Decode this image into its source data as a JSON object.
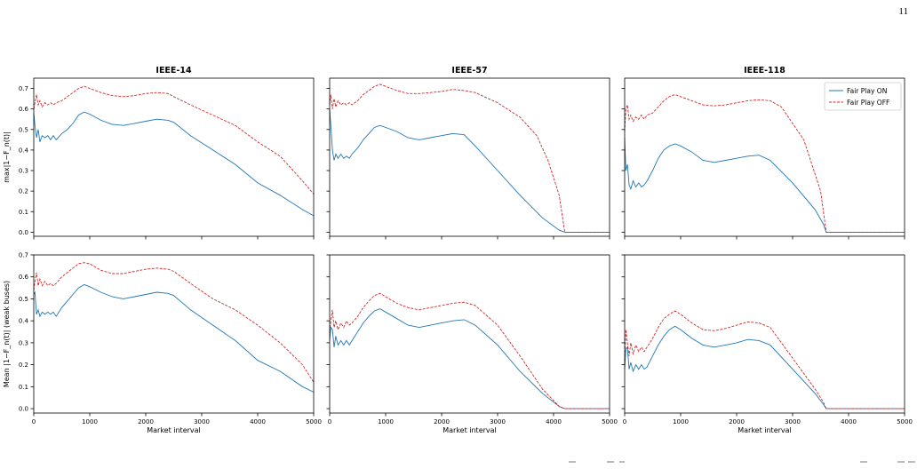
{
  "page_number": "11",
  "legend": {
    "on_label": "Fair Play ON",
    "off_label": "Fair Play OFF",
    "placement": "upper-right of IEEE-118 top panel"
  },
  "colors": {
    "on": "#1f77b4",
    "off": "#d62728"
  },
  "row_ylabels": [
    "max|1−F_n(t)|",
    "Mean |1−F_n(t)| (weak buses)"
  ],
  "chart_data": [
    {
      "type": "line",
      "title": "IEEE-14",
      "xlabel": "",
      "ylabel": "max|1−F_n(t)|",
      "xlim": [
        0,
        5000
      ],
      "ylim": [
        -0.02,
        0.75
      ],
      "xticks": [
        0,
        1000,
        2000,
        3000,
        4000,
        5000
      ],
      "yticks": [
        "0.0",
        "0.1",
        "0.2",
        "0.3",
        "0.4",
        "0.5",
        "0.6",
        "0.7"
      ],
      "show_xticklabels": false,
      "show_yticklabels": true,
      "series": [
        {
          "name": "Fair Play ON",
          "style": "solid",
          "x": [
            0,
            20,
            50,
            80,
            110,
            150,
            200,
            250,
            300,
            350,
            400,
            500,
            600,
            700,
            800,
            900,
            1000,
            1200,
            1400,
            1600,
            1800,
            2000,
            2200,
            2400,
            2500,
            2800,
            3200,
            3600,
            4000,
            4400,
            4800,
            5000
          ],
          "y": [
            0.58,
            0.52,
            0.46,
            0.5,
            0.44,
            0.47,
            0.46,
            0.47,
            0.45,
            0.47,
            0.45,
            0.48,
            0.5,
            0.53,
            0.57,
            0.585,
            0.575,
            0.545,
            0.525,
            0.52,
            0.53,
            0.54,
            0.55,
            0.545,
            0.535,
            0.47,
            0.4,
            0.33,
            0.24,
            0.18,
            0.11,
            0.08
          ]
        },
        {
          "name": "Fair Play OFF",
          "style": "dashed",
          "x": [
            0,
            20,
            50,
            80,
            110,
            150,
            200,
            250,
            300,
            350,
            400,
            500,
            600,
            700,
            800,
            900,
            1000,
            1200,
            1400,
            1600,
            1800,
            2000,
            2200,
            2400,
            2500,
            2800,
            3200,
            3600,
            4000,
            4400,
            4800,
            5000
          ],
          "y": [
            0.6,
            0.63,
            0.67,
            0.62,
            0.64,
            0.61,
            0.63,
            0.62,
            0.63,
            0.62,
            0.63,
            0.64,
            0.66,
            0.68,
            0.7,
            0.71,
            0.7,
            0.68,
            0.665,
            0.66,
            0.665,
            0.675,
            0.68,
            0.675,
            0.66,
            0.62,
            0.57,
            0.52,
            0.44,
            0.37,
            0.25,
            0.185
          ]
        }
      ]
    },
    {
      "type": "line",
      "title": "IEEE-57",
      "xlabel": "",
      "ylabel": "",
      "xlim": [
        0,
        5000
      ],
      "ylim": [
        -0.02,
        0.75
      ],
      "xticks": [
        0,
        1000,
        2000,
        3000,
        4000,
        5000
      ],
      "yticks": [
        "0.0",
        "0.1",
        "0.2",
        "0.3",
        "0.4",
        "0.5",
        "0.6",
        "0.7"
      ],
      "show_xticklabels": false,
      "show_yticklabels": false,
      "series": [
        {
          "name": "Fair Play ON",
          "style": "solid",
          "x": [
            0,
            20,
            50,
            80,
            110,
            150,
            200,
            250,
            300,
            350,
            400,
            500,
            600,
            700,
            800,
            900,
            1000,
            1200,
            1400,
            1600,
            1800,
            2000,
            2200,
            2400,
            2600,
            3000,
            3400,
            3800,
            4100,
            4200,
            5000
          ],
          "y": [
            0.6,
            0.52,
            0.4,
            0.35,
            0.38,
            0.36,
            0.38,
            0.36,
            0.37,
            0.36,
            0.38,
            0.41,
            0.45,
            0.48,
            0.51,
            0.52,
            0.51,
            0.49,
            0.46,
            0.45,
            0.46,
            0.47,
            0.48,
            0.475,
            0.42,
            0.3,
            0.18,
            0.07,
            0.01,
            0.0,
            0.0
          ]
        },
        {
          "name": "Fair Play OFF",
          "style": "dashed",
          "x": [
            0,
            20,
            50,
            80,
            110,
            150,
            200,
            250,
            300,
            350,
            400,
            500,
            600,
            700,
            800,
            900,
            1000,
            1200,
            1400,
            1600,
            1800,
            2000,
            2200,
            2400,
            2600,
            3000,
            3400,
            3700,
            3900,
            4100,
            4200,
            5000
          ],
          "y": [
            0.62,
            0.67,
            0.6,
            0.65,
            0.61,
            0.64,
            0.62,
            0.63,
            0.62,
            0.63,
            0.62,
            0.64,
            0.67,
            0.69,
            0.71,
            0.72,
            0.71,
            0.69,
            0.675,
            0.675,
            0.68,
            0.685,
            0.695,
            0.69,
            0.68,
            0.63,
            0.56,
            0.47,
            0.35,
            0.18,
            0.0,
            0.0
          ]
        }
      ]
    },
    {
      "type": "line",
      "title": "IEEE-118",
      "xlabel": "",
      "ylabel": "",
      "xlim": [
        0,
        5000
      ],
      "ylim": [
        -0.02,
        0.75
      ],
      "xticks": [
        0,
        1000,
        2000,
        3000,
        4000,
        5000
      ],
      "yticks": [
        "0.0",
        "0.1",
        "0.2",
        "0.3",
        "0.4",
        "0.5",
        "0.6",
        "0.7"
      ],
      "show_xticklabels": false,
      "show_yticklabels": false,
      "legend": true,
      "series": [
        {
          "name": "Fair Play ON",
          "style": "solid",
          "x": [
            0,
            20,
            50,
            80,
            110,
            150,
            200,
            250,
            300,
            350,
            400,
            500,
            600,
            700,
            800,
            900,
            1000,
            1200,
            1400,
            1600,
            1800,
            2000,
            2200,
            2400,
            2600,
            3000,
            3400,
            3550,
            3600,
            5000
          ],
          "y": [
            0.46,
            0.3,
            0.33,
            0.23,
            0.21,
            0.25,
            0.22,
            0.24,
            0.22,
            0.23,
            0.25,
            0.3,
            0.36,
            0.4,
            0.42,
            0.43,
            0.42,
            0.39,
            0.35,
            0.34,
            0.35,
            0.36,
            0.37,
            0.375,
            0.35,
            0.24,
            0.11,
            0.04,
            0.0,
            0.0
          ]
        },
        {
          "name": "Fair Play OFF",
          "style": "dashed",
          "x": [
            0,
            20,
            50,
            80,
            110,
            150,
            200,
            250,
            300,
            350,
            400,
            500,
            600,
            700,
            800,
            900,
            1000,
            1200,
            1400,
            1600,
            1800,
            2000,
            2200,
            2400,
            2600,
            2800,
            3200,
            3500,
            3600,
            5000
          ],
          "y": [
            0.49,
            0.6,
            0.62,
            0.55,
            0.57,
            0.54,
            0.56,
            0.55,
            0.57,
            0.55,
            0.57,
            0.58,
            0.61,
            0.64,
            0.66,
            0.67,
            0.66,
            0.64,
            0.62,
            0.615,
            0.62,
            0.63,
            0.64,
            0.645,
            0.64,
            0.61,
            0.45,
            0.2,
            0.0,
            0.0
          ]
        }
      ]
    },
    {
      "type": "line",
      "title": "",
      "xlabel": "Market interval",
      "ylabel": "Mean |1−F_n(t)| (weak buses)",
      "xlim": [
        0,
        5000
      ],
      "ylim": [
        -0.02,
        0.7
      ],
      "xticks": [
        0,
        1000,
        2000,
        3000,
        4000,
        5000
      ],
      "yticks": [
        "0.0",
        "0.1",
        "0.2",
        "0.3",
        "0.4",
        "0.5",
        "0.6",
        "0.7"
      ],
      "show_xticklabels": true,
      "show_yticklabels": true,
      "series": [
        {
          "name": "Fair Play ON",
          "style": "solid",
          "x": [
            0,
            20,
            50,
            80,
            110,
            150,
            200,
            250,
            300,
            350,
            400,
            500,
            600,
            700,
            800,
            900,
            1000,
            1200,
            1400,
            1600,
            1800,
            2000,
            2200,
            2400,
            2500,
            2800,
            3200,
            3600,
            4000,
            4400,
            4800,
            5000
          ],
          "y": [
            0.52,
            0.53,
            0.43,
            0.45,
            0.42,
            0.44,
            0.43,
            0.44,
            0.43,
            0.44,
            0.42,
            0.46,
            0.49,
            0.52,
            0.55,
            0.565,
            0.555,
            0.53,
            0.51,
            0.5,
            0.51,
            0.52,
            0.53,
            0.525,
            0.515,
            0.45,
            0.38,
            0.31,
            0.22,
            0.17,
            0.1,
            0.075
          ]
        },
        {
          "name": "Fair Play OFF",
          "style": "dashed",
          "x": [
            0,
            20,
            50,
            80,
            110,
            150,
            200,
            250,
            300,
            350,
            400,
            500,
            600,
            700,
            800,
            900,
            1000,
            1200,
            1400,
            1600,
            1800,
            2000,
            2200,
            2400,
            2500,
            2800,
            3200,
            3600,
            4000,
            4400,
            4800,
            5000
          ],
          "y": [
            0.54,
            0.58,
            0.62,
            0.56,
            0.59,
            0.56,
            0.58,
            0.56,
            0.57,
            0.56,
            0.57,
            0.6,
            0.62,
            0.64,
            0.66,
            0.665,
            0.66,
            0.63,
            0.615,
            0.615,
            0.625,
            0.635,
            0.64,
            0.635,
            0.625,
            0.57,
            0.5,
            0.45,
            0.38,
            0.3,
            0.2,
            0.12
          ]
        }
      ]
    },
    {
      "type": "line",
      "title": "",
      "xlabel": "Market interval",
      "ylabel": "",
      "xlim": [
        0,
        5000
      ],
      "ylim": [
        -0.02,
        0.7
      ],
      "xticks": [
        0,
        1000,
        2000,
        3000,
        4000,
        5000
      ],
      "yticks": [
        "0.0",
        "0.1",
        "0.2",
        "0.3",
        "0.4",
        "0.5",
        "0.6",
        "0.7"
      ],
      "show_xticklabels": true,
      "show_yticklabels": false,
      "series": [
        {
          "name": "Fair Play ON",
          "style": "solid",
          "x": [
            0,
            20,
            50,
            80,
            110,
            150,
            200,
            250,
            300,
            350,
            400,
            500,
            600,
            700,
            800,
            900,
            1000,
            1200,
            1400,
            1600,
            1800,
            2000,
            2200,
            2400,
            2600,
            3000,
            3400,
            3800,
            4100,
            4200,
            5000
          ],
          "y": [
            0.31,
            0.37,
            0.36,
            0.28,
            0.33,
            0.29,
            0.31,
            0.29,
            0.31,
            0.29,
            0.31,
            0.35,
            0.39,
            0.42,
            0.445,
            0.455,
            0.44,
            0.41,
            0.38,
            0.37,
            0.38,
            0.39,
            0.4,
            0.405,
            0.38,
            0.29,
            0.17,
            0.07,
            0.01,
            0.0,
            0.0
          ]
        },
        {
          "name": "Fair Play OFF",
          "style": "dashed",
          "x": [
            0,
            20,
            50,
            80,
            110,
            150,
            200,
            250,
            300,
            350,
            400,
            500,
            600,
            700,
            800,
            900,
            1000,
            1200,
            1400,
            1600,
            1800,
            2000,
            2200,
            2400,
            2600,
            3000,
            3400,
            3800,
            4100,
            4200,
            5000
          ],
          "y": [
            0.35,
            0.4,
            0.45,
            0.37,
            0.4,
            0.36,
            0.39,
            0.37,
            0.4,
            0.38,
            0.39,
            0.42,
            0.46,
            0.49,
            0.515,
            0.525,
            0.51,
            0.48,
            0.46,
            0.45,
            0.46,
            0.47,
            0.48,
            0.485,
            0.47,
            0.38,
            0.24,
            0.09,
            0.01,
            0.0,
            0.0
          ]
        }
      ]
    },
    {
      "type": "line",
      "title": "",
      "xlabel": "Market interval",
      "ylabel": "",
      "xlim": [
        0,
        5000
      ],
      "ylim": [
        -0.02,
        0.7
      ],
      "xticks": [
        0,
        1000,
        2000,
        3000,
        4000,
        5000
      ],
      "yticks": [
        "0.0",
        "0.1",
        "0.2",
        "0.3",
        "0.4",
        "0.5",
        "0.6",
        "0.7"
      ],
      "show_xticklabels": true,
      "show_yticklabels": false,
      "series": [
        {
          "name": "Fair Play ON",
          "style": "solid",
          "x": [
            0,
            20,
            50,
            80,
            110,
            150,
            200,
            250,
            300,
            350,
            400,
            500,
            600,
            700,
            800,
            900,
            1000,
            1200,
            1400,
            1600,
            1800,
            2000,
            2200,
            2400,
            2600,
            3000,
            3400,
            3550,
            3600,
            5000
          ],
          "y": [
            0.18,
            0.27,
            0.28,
            0.18,
            0.21,
            0.17,
            0.2,
            0.18,
            0.2,
            0.18,
            0.19,
            0.24,
            0.29,
            0.33,
            0.36,
            0.375,
            0.36,
            0.32,
            0.29,
            0.28,
            0.29,
            0.3,
            0.315,
            0.31,
            0.29,
            0.18,
            0.07,
            0.02,
            0.0,
            0.0
          ]
        },
        {
          "name": "Fair Play OFF",
          "style": "dashed",
          "x": [
            0,
            20,
            50,
            80,
            110,
            150,
            200,
            250,
            300,
            350,
            400,
            500,
            600,
            700,
            800,
            900,
            1000,
            1200,
            1400,
            1600,
            1800,
            2000,
            2200,
            2400,
            2600,
            3000,
            3400,
            3550,
            3600,
            5000
          ],
          "y": [
            0.2,
            0.36,
            0.3,
            0.24,
            0.3,
            0.25,
            0.29,
            0.26,
            0.28,
            0.26,
            0.28,
            0.32,
            0.37,
            0.41,
            0.43,
            0.445,
            0.43,
            0.39,
            0.36,
            0.355,
            0.365,
            0.38,
            0.395,
            0.39,
            0.37,
            0.23,
            0.09,
            0.03,
            0.0,
            0.0
          ]
        }
      ]
    }
  ]
}
